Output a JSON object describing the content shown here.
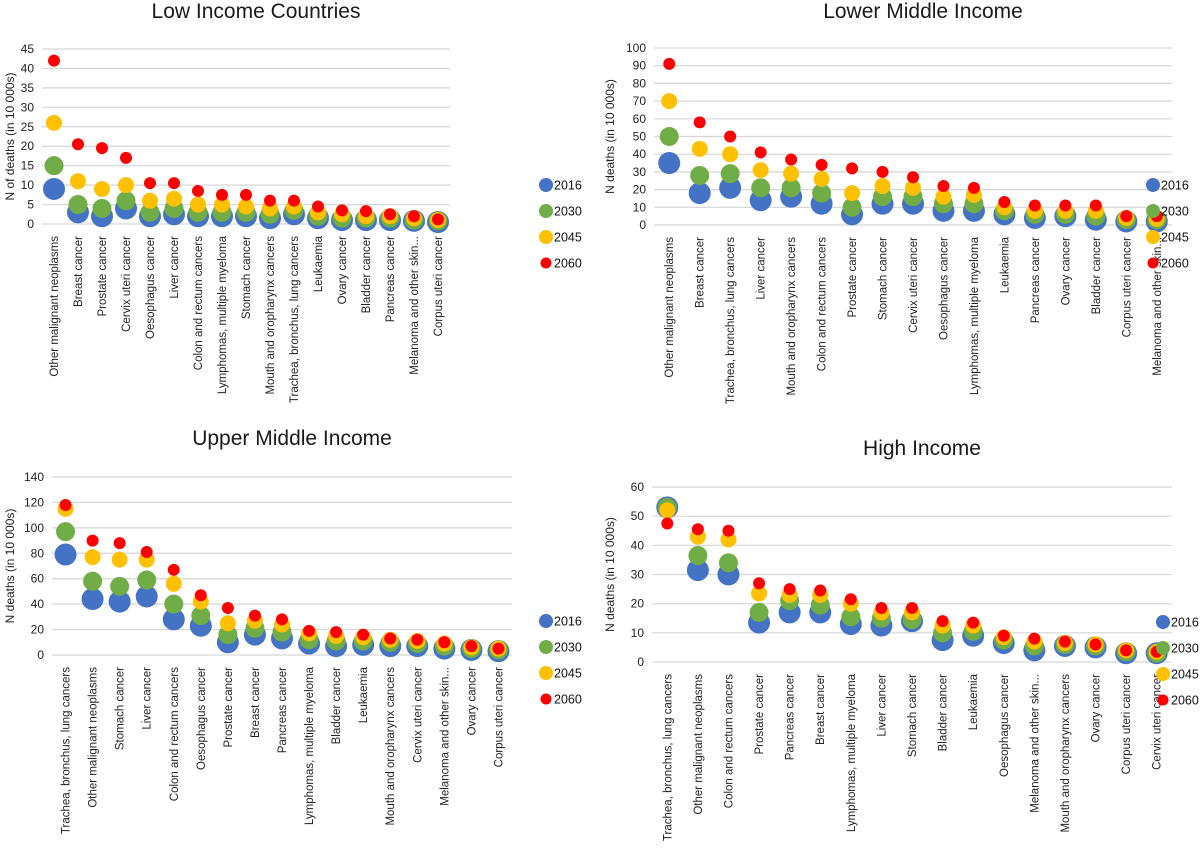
{
  "series_meta": [
    {
      "name": "2016",
      "color": "#4472C4"
    },
    {
      "name": "2030",
      "color": "#70AD47"
    },
    {
      "name": "2045",
      "color": "#FFC000"
    },
    {
      "name": "2060",
      "color": "#FF0000"
    }
  ],
  "chart_data": [
    {
      "type": "scatter",
      "title": "Low Income Countries",
      "xlabel": "",
      "ylabel": "N of deaths (in 10 000s)",
      "ylim": [
        0,
        45
      ],
      "yticks": [
        0,
        5,
        10,
        15,
        20,
        25,
        30,
        35,
        40,
        45
      ],
      "grid": true,
      "legend": "right",
      "categories": [
        "Other malignant neoplasms",
        "Breast cancer",
        "Prostate cancer",
        "Cervix uteri cancer",
        "Oesophagus cancer",
        "Liver cancer",
        "Colon and rectum cancers",
        "Lymphomas, multiple myeloma",
        "Stomach cancer",
        "Mouth and oropharynx cancers",
        "Trachea, bronchus, lung cancers",
        "Leukaemia",
        "Ovary cancer",
        "Bladder cancer",
        "Pancreas cancer",
        "Melanoma and other skin...",
        "Corpus uteri cancer"
      ],
      "series": [
        {
          "name": "2016",
          "values": [
            9,
            3,
            2,
            4,
            2,
            2.5,
            2,
            2,
            2,
            1.5,
            2.5,
            1.5,
            1,
            1,
            1,
            0.8,
            0.5
          ]
        },
        {
          "name": "2030",
          "values": [
            15,
            5,
            4,
            6,
            3,
            4,
            3,
            3,
            3,
            2.5,
            3.5,
            2,
            1.5,
            1.5,
            1.5,
            1,
            0.8
          ]
        },
        {
          "name": "2045",
          "values": [
            26,
            11,
            9,
            10,
            6,
            6.5,
            5,
            5,
            4.5,
            4,
            4.5,
            3,
            2.5,
            2,
            2,
            1.5,
            1
          ]
        },
        {
          "name": "2060",
          "values": [
            42,
            20.5,
            19.5,
            17,
            10.5,
            10.5,
            8.5,
            7.5,
            7.5,
            6,
            6,
            4.5,
            3.5,
            3.3,
            2.5,
            2,
            1.2
          ]
        }
      ]
    },
    {
      "type": "scatter",
      "title": "Lower Middle Income",
      "xlabel": "",
      "ylabel": "N deaths (in 10 000s)",
      "ylim": [
        0,
        100
      ],
      "yticks": [
        0,
        10,
        20,
        30,
        40,
        50,
        60,
        70,
        80,
        90,
        100
      ],
      "grid": true,
      "legend": "right",
      "categories": [
        "Other malignant neoplasms",
        "Breast cancer",
        "Trachea, bronchus, lung cancers",
        "Liver cancer",
        "Mouth and oropharynx cancers",
        "Colon and rectum cancers",
        "Prostate cancer",
        "Stomach cancer",
        "Cervix uteri cancer",
        "Oesophagus cancer",
        "Lymphomas, multiple myeloma",
        "Leukaemia",
        "Pancreas cancer",
        "Ovary cancer",
        "Bladder cancer",
        "Corpus uteri cancer",
        "Melanoma and other skin..."
      ],
      "series": [
        {
          "name": "2016",
          "values": [
            35,
            18,
            21,
            14,
            16,
            12,
            6,
            12,
            12,
            8,
            8,
            6,
            4,
            5,
            3,
            2,
            2
          ]
        },
        {
          "name": "2030",
          "values": [
            50,
            28,
            29,
            21,
            21,
            18,
            10,
            16,
            16,
            12,
            12,
            8,
            6,
            6,
            5,
            3,
            3
          ]
        },
        {
          "name": "2045",
          "values": [
            70,
            43,
            40,
            31,
            29,
            26,
            18,
            22,
            21,
            16,
            17,
            10,
            8,
            8,
            8,
            4,
            3.5
          ]
        },
        {
          "name": "2060",
          "values": [
            91,
            58,
            50,
            41,
            37,
            34,
            32,
            30,
            27,
            22,
            21,
            13,
            11,
            11,
            11,
            5,
            5
          ]
        }
      ]
    },
    {
      "type": "scatter",
      "title": "Upper Middle Income",
      "xlabel": "",
      "ylabel": "N deaths (in 10 000s)",
      "ylim": [
        0,
        140
      ],
      "yticks": [
        0,
        20,
        40,
        60,
        80,
        100,
        120,
        140
      ],
      "grid": true,
      "legend": "right",
      "categories": [
        "Trachea, bronchus, lung cancers",
        "Other malignant neoplasms",
        "Stomach cancer",
        "Liver cancer",
        "Colon and rectum cancers",
        "Oesophagus cancer",
        "Prostate cancer",
        "Breast cancer",
        "Pancreas cancer",
        "Lymphomas, multiple myeloma",
        "Bladder cancer",
        "Leukaemia",
        "Mouth and oropharynx cancers",
        "Cervix uteri cancer",
        "Melanoma and other skin...",
        "Ovary cancer",
        "Corpus uteri cancer"
      ],
      "series": [
        {
          "name": "2016",
          "values": [
            79,
            44,
            42,
            46,
            28,
            23,
            10,
            16,
            13,
            9,
            7,
            8,
            7,
            7,
            5,
            4,
            3
          ]
        },
        {
          "name": "2030",
          "values": [
            97,
            58,
            54,
            59,
            40,
            31,
            16,
            21,
            18,
            12,
            11,
            11,
            10,
            9,
            7,
            5,
            4
          ]
        },
        {
          "name": "2045",
          "values": [
            115,
            77,
            75,
            75,
            56,
            42,
            25,
            27,
            24,
            17,
            15,
            14,
            12,
            11,
            9,
            6,
            5
          ]
        },
        {
          "name": "2060",
          "values": [
            118,
            90,
            88,
            81,
            67,
            47,
            37,
            31,
            28,
            19,
            18,
            16,
            13,
            12,
            10,
            7,
            5
          ]
        }
      ]
    },
    {
      "type": "scatter",
      "title": "High Income",
      "xlabel": "",
      "ylabel": "N deaths (in 10 000s)",
      "ylim": [
        0,
        60
      ],
      "yticks": [
        0,
        10,
        20,
        30,
        40,
        50,
        60
      ],
      "grid": true,
      "legend": "right",
      "categories": [
        "Trachea, bronchus, lung cancers",
        "Other malignant neoplasms",
        "Colon and rectum cancers",
        "Prostate cancer",
        "Pancreas cancer",
        "Breast cancer",
        "Lymphomas, multiple myeloma",
        "Liver cancer",
        "Stomach cancer",
        "Bladder cancer",
        "Leukaemia",
        "Oesophagus cancer",
        "Melanoma and other skin...",
        "Mouth and oropharynx cancers",
        "Ovary cancer",
        "Corpus uteri cancer",
        "Cervix uteri cancer"
      ],
      "series": [
        {
          "name": "2016",
          "values": [
            53,
            31.5,
            30,
            13.5,
            17,
            17,
            13,
            12.5,
            14,
            7.5,
            9,
            6.5,
            4,
            5.5,
            5,
            3,
            3
          ]
        },
        {
          "name": "2030",
          "values": [
            53,
            36.5,
            34,
            17,
            21,
            19.5,
            15.5,
            15,
            14.5,
            10,
            10.5,
            7.5,
            5.5,
            6,
            5.5,
            3.5,
            3
          ]
        },
        {
          "name": "2045",
          "values": [
            52,
            43,
            42,
            23.5,
            23,
            23,
            20,
            17,
            17,
            12.5,
            12.5,
            8.5,
            7,
            6.5,
            6,
            4,
            3.5
          ]
        },
        {
          "name": "2060",
          "values": [
            47.5,
            45.5,
            45,
            27,
            25,
            24.5,
            21.5,
            18.5,
            18.5,
            14,
            13.5,
            9,
            8,
            7,
            6,
            4,
            3.5
          ]
        }
      ]
    }
  ]
}
